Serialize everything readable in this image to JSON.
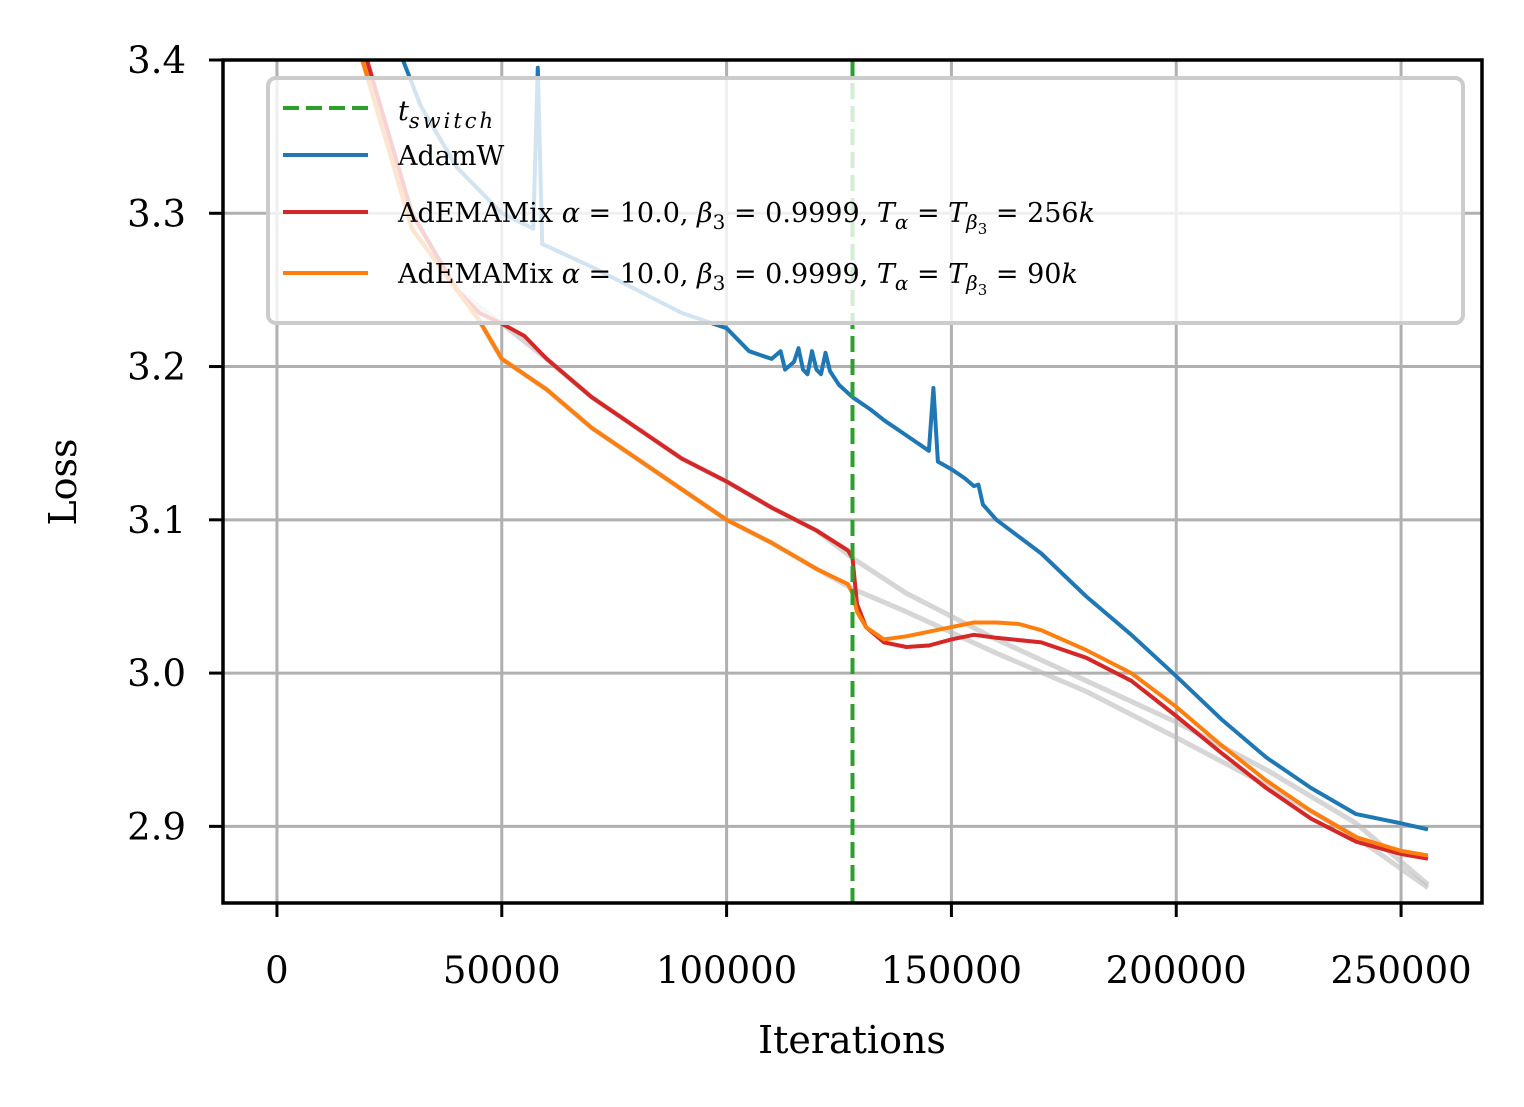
{
  "chart_data": {
    "type": "line",
    "title": "",
    "xlabel": "Iterations",
    "ylabel": "Loss",
    "xlim": [
      -12000,
      268000
    ],
    "ylim": [
      2.85,
      3.4
    ],
    "grid": true,
    "legend_position": "top-right",
    "x_ticks": [
      0,
      50000,
      100000,
      150000,
      200000,
      250000
    ],
    "x_tick_labels": [
      "0",
      "50000",
      "100000",
      "150000",
      "200000",
      "250000"
    ],
    "y_ticks": [
      2.9,
      3.0,
      3.1,
      3.2,
      3.3,
      3.4
    ],
    "y_tick_labels": [
      "2.9",
      "3.0",
      "3.1",
      "3.2",
      "3.3",
      "3.4"
    ],
    "vline": {
      "name": "t_switch",
      "legend_main": "t",
      "legend_sub": "switch",
      "x": 128000,
      "color": "#2ca02c",
      "style": "dashed"
    },
    "series": [
      {
        "name": "AdamW",
        "legend": "AdamW",
        "color": "#1f77b4",
        "x": [
          28000,
          32000,
          40000,
          50000,
          57000,
          58000,
          59000,
          70000,
          80000,
          90000,
          95000,
          100000,
          105000,
          110000,
          112000,
          113000,
          115000,
          116000,
          117000,
          118000,
          119000,
          120000,
          121000,
          122000,
          123000,
          125000,
          128000,
          132000,
          135000,
          140000,
          145000,
          146000,
          147000,
          150000,
          153000,
          155000,
          156000,
          157000,
          160000,
          170000,
          180000,
          190000,
          200000,
          210000,
          220000,
          230000,
          240000,
          250000,
          256000
        ],
        "y": [
          3.4,
          3.37,
          3.33,
          3.3,
          3.29,
          3.395,
          3.28,
          3.265,
          3.25,
          3.235,
          3.23,
          3.225,
          3.21,
          3.205,
          3.21,
          3.198,
          3.203,
          3.212,
          3.198,
          3.195,
          3.21,
          3.198,
          3.195,
          3.209,
          3.197,
          3.188,
          3.18,
          3.172,
          3.165,
          3.155,
          3.145,
          3.186,
          3.138,
          3.133,
          3.127,
          3.122,
          3.123,
          3.11,
          3.1,
          3.078,
          3.05,
          3.025,
          2.998,
          2.97,
          2.945,
          2.925,
          2.908,
          2.902,
          2.898
        ]
      },
      {
        "name": "AdEMAMix T=256k",
        "legend": "AdEMAMix α = 10.0, β₃ = 0.9999, Tα = Tβ₃ = 256k",
        "legend_parts": {
          "prefix": "AdEMAMix ",
          "alpha": "α = 10.0, ",
          "beta": "β",
          "beta_sub": "3",
          "beta_val": " = 0.9999, ",
          "T": "T",
          "T_sub": "α",
          "eq": " = ",
          "T2": "T",
          "T2_sub": "β",
          "T2_subsub": "3",
          "val": " = 256k"
        },
        "color": "#d62728",
        "x": [
          20000,
          30000,
          40000,
          45000,
          50000,
          55000,
          60000,
          70000,
          80000,
          90000,
          100000,
          110000,
          120000,
          127000,
          128000,
          129000,
          131000,
          135000,
          140000,
          145000,
          150000,
          155000,
          160000,
          170000,
          180000,
          190000,
          200000,
          210000,
          220000,
          230000,
          240000,
          250000,
          256000
        ],
        "y": [
          3.4,
          3.3,
          3.25,
          3.235,
          3.228,
          3.22,
          3.205,
          3.18,
          3.16,
          3.14,
          3.125,
          3.108,
          3.093,
          3.08,
          3.075,
          3.045,
          3.03,
          3.02,
          3.017,
          3.018,
          3.022,
          3.025,
          3.023,
          3.02,
          3.01,
          2.995,
          2.972,
          2.948,
          2.925,
          2.905,
          2.89,
          2.882,
          2.879
        ]
      },
      {
        "name": "AdEMAMix T=90k",
        "legend": "AdEMAMix α = 10.0, β₃ = 0.9999, Tα = Tβ₃ = 90k",
        "legend_parts": {
          "prefix": "AdEMAMix ",
          "alpha": "α = 10.0, ",
          "beta": "β",
          "beta_sub": "3",
          "beta_val": " = 0.9999, ",
          "T": "T",
          "T_sub": "α",
          "eq": " = ",
          "T2": "T",
          "T2_sub": "β",
          "T2_subsub": "3",
          "val": " = 90k"
        },
        "color": "#ff7f0e",
        "x": [
          19000,
          30000,
          45000,
          50000,
          60000,
          70000,
          80000,
          90000,
          100000,
          110000,
          120000,
          127000,
          128000,
          129000,
          131000,
          135000,
          140000,
          145000,
          150000,
          155000,
          160000,
          165000,
          170000,
          180000,
          190000,
          200000,
          210000,
          220000,
          230000,
          240000,
          250000,
          256000
        ],
        "y": [
          3.4,
          3.29,
          3.23,
          3.205,
          3.185,
          3.16,
          3.14,
          3.12,
          3.1,
          3.085,
          3.068,
          3.058,
          3.052,
          3.04,
          3.03,
          3.022,
          3.024,
          3.027,
          3.03,
          3.033,
          3.033,
          3.032,
          3.028,
          3.015,
          3.0,
          2.978,
          2.953,
          2.93,
          2.91,
          2.893,
          2.884,
          2.881
        ]
      }
    ],
    "reference_series": [
      {
        "name": "reference-gray-1",
        "color": "#bbbbbb",
        "x": [
          20000,
          30000,
          40000,
          50000,
          60000,
          70000,
          80000,
          90000,
          100000,
          110000,
          120000,
          128000,
          140000,
          160000,
          180000,
          200000,
          220000,
          240000,
          256000
        ],
        "y": [
          3.4,
          3.3,
          3.25,
          3.228,
          3.205,
          3.18,
          3.16,
          3.14,
          3.125,
          3.108,
          3.093,
          3.075,
          3.052,
          3.022,
          2.995,
          2.968,
          2.937,
          2.902,
          2.862
        ]
      },
      {
        "name": "reference-gray-2",
        "color": "#bbbbbb",
        "x": [
          19000,
          30000,
          45000,
          50000,
          60000,
          70000,
          80000,
          90000,
          100000,
          110000,
          120000,
          128000,
          140000,
          160000,
          180000,
          200000,
          220000,
          240000,
          256000
        ],
        "y": [
          3.4,
          3.29,
          3.23,
          3.205,
          3.185,
          3.16,
          3.14,
          3.12,
          3.1,
          3.085,
          3.068,
          3.055,
          3.04,
          3.013,
          2.988,
          2.958,
          2.927,
          2.893,
          2.86
        ]
      }
    ]
  }
}
